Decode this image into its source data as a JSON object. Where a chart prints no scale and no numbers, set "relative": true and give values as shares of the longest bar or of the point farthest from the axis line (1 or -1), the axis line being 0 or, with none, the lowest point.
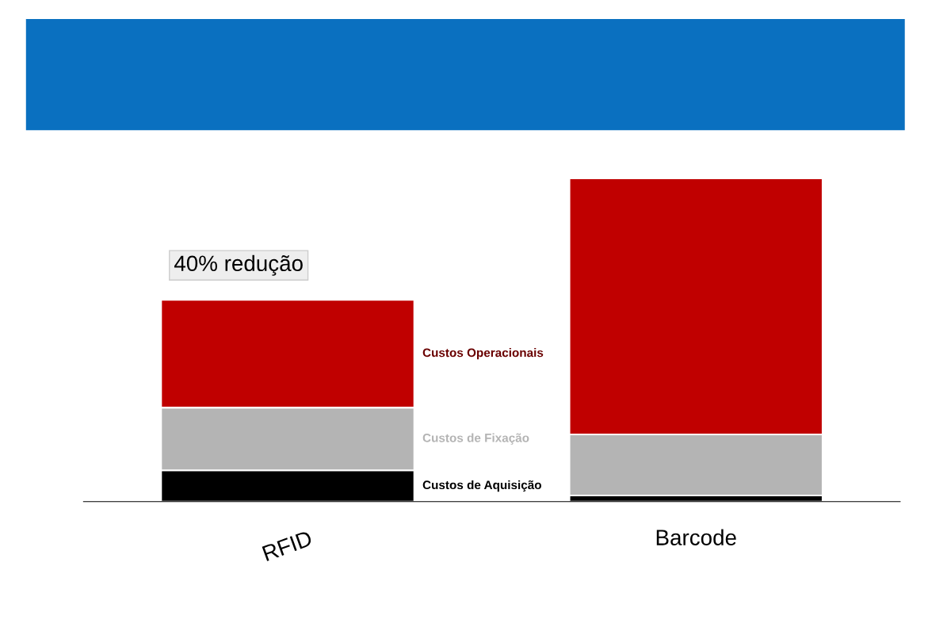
{
  "chart_data": {
    "type": "bar",
    "stacked": true,
    "relative": true,
    "categories": [
      "RFID",
      "Barcode"
    ],
    "series": [
      {
        "name": "Custos de Aquisição",
        "color": "#000000",
        "values": [
          0.097,
          0.019
        ]
      },
      {
        "name": "Custos de Fixação",
        "color": "#b4b4b4",
        "values": [
          0.194,
          0.189
        ]
      },
      {
        "name": "Custos Operacionais",
        "color": "#c00000",
        "values": [
          0.333,
          0.792
        ]
      }
    ],
    "annotations": [
      {
        "text": "40% redução",
        "x": "RFID",
        "y": 0.624
      }
    ],
    "legend": false,
    "grid": false
  }
}
